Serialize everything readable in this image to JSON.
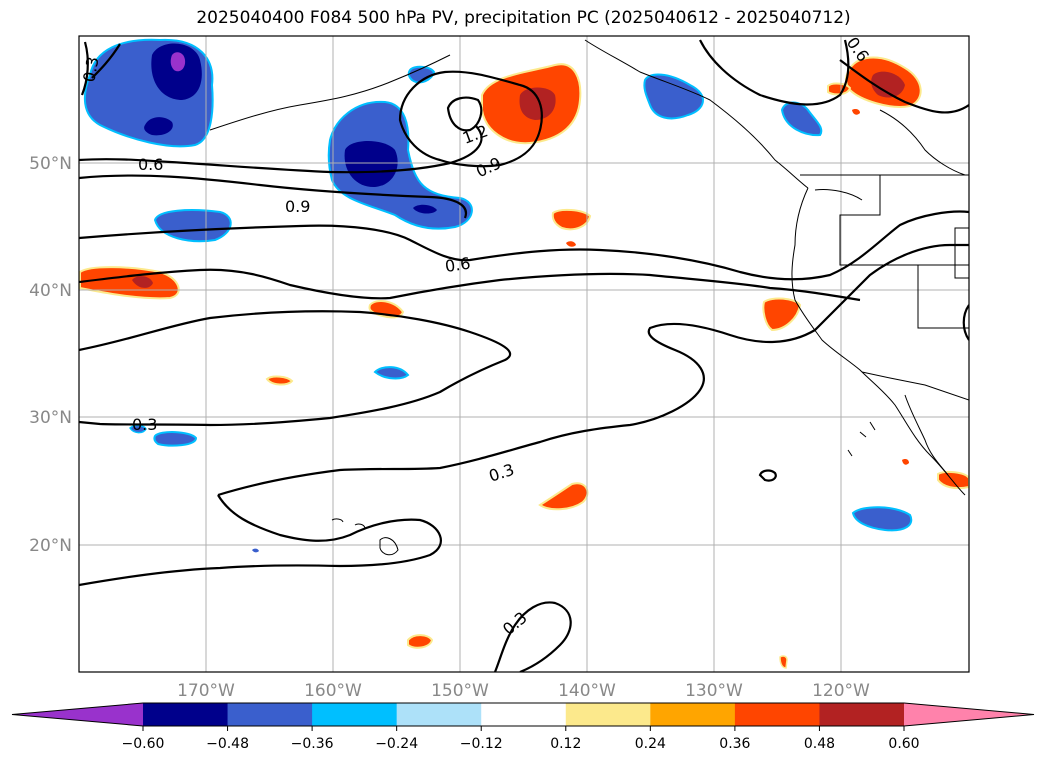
{
  "title": "2025040400 F084 500 hPa PV, precipitation PC (2025040612 - 2025040712)",
  "map": {
    "projection": "PlateCarree",
    "lon_range": [
      -180,
      -110
    ],
    "lat_range": [
      10,
      60
    ],
    "gridlines": true,
    "lat_labels": [
      "50°N",
      "40°N",
      "30°N",
      "20°N"
    ],
    "lon_labels": [
      "170°W",
      "160°W",
      "150°W",
      "140°W",
      "130°W",
      "120°W"
    ]
  },
  "contours": {
    "field": "500 hPa PV",
    "labels": [
      "0.3",
      "0.6",
      "0.9",
      "1.2",
      "0.9",
      "0.6",
      "0.3",
      "0.3",
      "0.3",
      "0.6"
    ]
  },
  "colorbar": {
    "ticks": [
      "−0.60",
      "−0.48",
      "−0.36",
      "−0.24",
      "−0.12",
      "0.12",
      "0.24",
      "0.36",
      "0.48",
      "0.60"
    ],
    "colors": [
      "#9932CC",
      "#00008B",
      "#3A5FCD",
      "#00BFFF",
      "#ADE1F9",
      "#FFFFFF",
      "#FCE98C",
      "#FFA500",
      "#FF4500",
      "#B22222",
      "#FF82AB"
    ]
  }
}
